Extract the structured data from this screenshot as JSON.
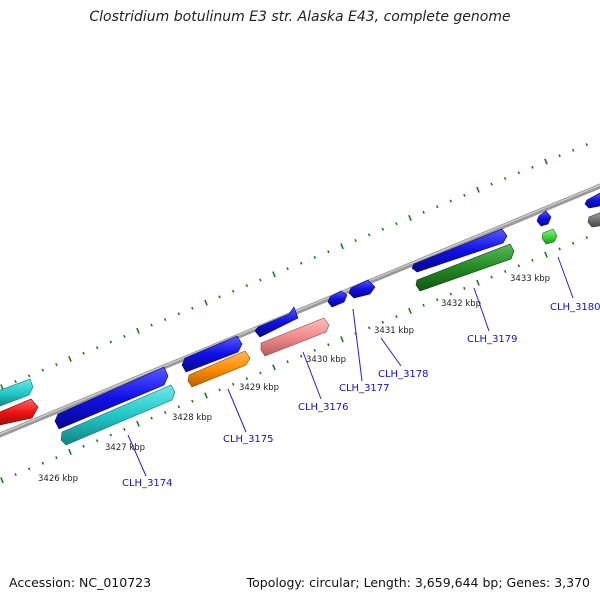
{
  "title": "Clostridium botulinum E3 str. Alaska E43, complete genome",
  "footer": {
    "accession": "Accession: NC_010723",
    "summary": "Topology: circular; Length: 3,659,644 bp; Genes: 3,370"
  },
  "ruler": {
    "unit": "kbp",
    "labels": [
      "3426 kbp",
      "3427 kbp",
      "3428 kbp",
      "3429 kbp",
      "3430 kbp",
      "3431 kbp",
      "3432 kbp",
      "3433 kbp"
    ]
  },
  "gene_labels": [
    "CLH_3174",
    "CLH_3175",
    "CLH_3176",
    "CLH_3177",
    "CLH_3178",
    "CLH_3179",
    "CLH_3180"
  ],
  "colors": {
    "backbone": "#8a8a8a",
    "tick": "#1c7a1c",
    "blue": "#1010e6",
    "cyan": "#21c7c7",
    "red": "#ee1111",
    "orange": "#ff8c00",
    "pink": "#f08a8a",
    "darkgreen": "#238b23",
    "lightgreen": "#3ed83e",
    "gray": "#777777",
    "label": "#1212c8"
  }
}
